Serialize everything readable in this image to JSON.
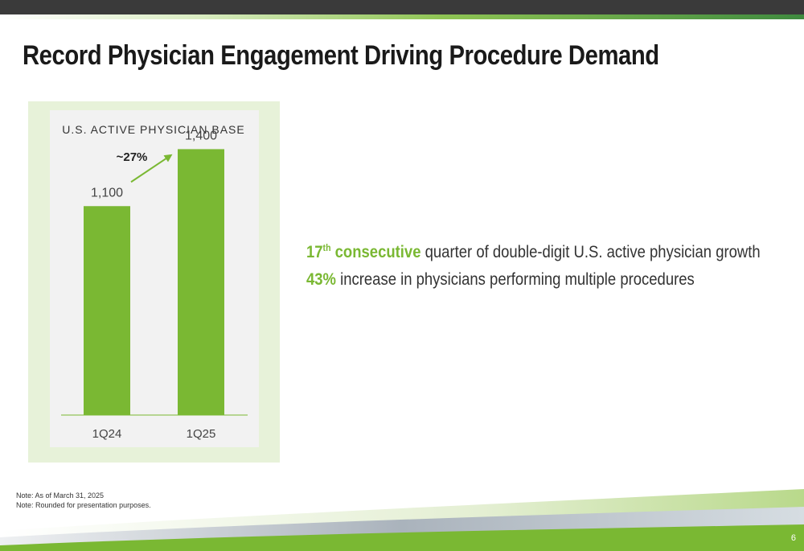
{
  "slide": {
    "title": "Record Physician Engagement Driving Procedure Demand",
    "page_number": "6"
  },
  "chart_data": {
    "type": "bar",
    "title": "U.S. ACTIVE PHYSICIAN BASE",
    "categories": [
      "1Q24",
      "1Q25"
    ],
    "values": [
      1100,
      1400
    ],
    "value_labels": [
      "1,100",
      "1,400"
    ],
    "annotation": "~27%",
    "ylim": [
      0,
      1550
    ],
    "bar_color": "#7ab833"
  },
  "bullets": [
    {
      "highlight_main": "17",
      "highlight_sup": "th",
      "highlight_tail": " consecutive",
      "text": " quarter of double-digit U.S. active physician growth"
    },
    {
      "highlight_main": "43%",
      "highlight_sup": "",
      "highlight_tail": "",
      "text": " increase in physicians performing multiple procedures"
    }
  ],
  "notes": [
    "Note: As of March 31, 2025",
    "Note: Rounded for presentation purposes."
  ],
  "colors": {
    "accent_green": "#7ab833",
    "dark_bar": "#3a3a3a",
    "panel_bg": "#e7f2d9"
  }
}
